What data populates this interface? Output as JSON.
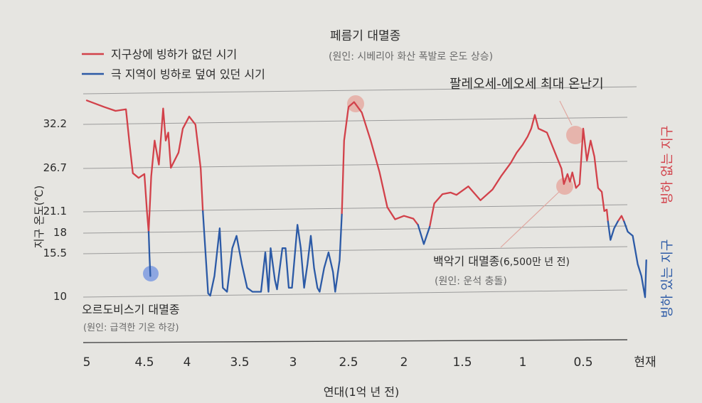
{
  "chart_data": {
    "type": "line",
    "title": "",
    "xlabel": "연대(1억 년 전)",
    "ylabel": "지구 온도(℃)",
    "x_ticks": [
      "5",
      "4.5",
      "4",
      "3.5",
      "3",
      "2.5",
      "2",
      "1.5",
      "1",
      "0.5",
      "현재"
    ],
    "y_ticks": [
      10,
      15.5,
      18,
      21.1,
      26.7,
      32.2
    ],
    "xlim": [
      5,
      0
    ],
    "ylim": [
      10,
      36
    ],
    "legend": [
      {
        "label": "지구상에 빙하가 없던 시기",
        "color": "#d2414a"
      },
      {
        "label": "극 지역이 빙하로 덮여 있던 시기",
        "color": "#2c5aa6"
      }
    ],
    "right_labels": {
      "ice_free": "빙하 없는 지구",
      "ice_house": "빙하 있는 지구"
    },
    "annotations": [
      {
        "title": "페름기 대멸종",
        "subtitle": "(원인: 시베리아 화산 폭발로 온도 상승)"
      },
      {
        "title": "팔레오세-에오세 최대 온난기",
        "subtitle": ""
      },
      {
        "title": "백악기 대멸종",
        "title_suffix": "(6,500만 년 전)",
        "subtitle": "(원인: 운석 충돌)"
      },
      {
        "title": "오르도비스기 대멸종",
        "subtitle": "(원인: 급격한 기온 하강)"
      }
    ],
    "series": [
      {
        "name": "지구상에 빙하가 없던 시기",
        "color": "#d2414a",
        "segments": [
          [
            [
              5.0,
              35.0
            ],
            [
              4.85,
              34.2
            ],
            [
              4.75,
              33.7
            ],
            [
              4.66,
              33.9
            ],
            [
              4.63,
              29.8
            ],
            [
              4.6,
              25.9
            ],
            [
              4.55,
              25.3
            ],
            [
              4.5,
              25.8
            ],
            [
              4.47,
              21.0
            ],
            [
              4.45,
              18.0
            ]
          ],
          [
            [
              4.45,
              18.0
            ],
            [
              4.42,
              25.5
            ],
            [
              4.38,
              30.0
            ],
            [
              4.33,
              27.0
            ],
            [
              4.28,
              34.0
            ],
            [
              4.25,
              30.0
            ],
            [
              4.22,
              31.0
            ],
            [
              4.19,
              26.6
            ],
            [
              4.1,
              28.5
            ],
            [
              4.05,
              31.5
            ],
            [
              3.98,
              33.0
            ],
            [
              3.92,
              32.0
            ],
            [
              3.87,
              26.5
            ],
            [
              3.85,
              21.0
            ]
          ],
          [
            [
              2.56,
              20.5
            ],
            [
              2.54,
              30.0
            ],
            [
              2.5,
              34.2
            ],
            [
              2.45,
              34.8
            ],
            [
              2.38,
              33.5
            ],
            [
              2.3,
              30.0
            ],
            [
              2.22,
              26.0
            ],
            [
              2.15,
              21.5
            ],
            [
              2.08,
              19.8
            ],
            [
              2.0,
              20.3
            ],
            [
              1.92,
              19.9
            ],
            [
              1.88,
              19.0
            ]
          ],
          [
            [
              1.78,
              18.7
            ],
            [
              1.74,
              22.0
            ],
            [
              1.67,
              23.2
            ],
            [
              1.6,
              23.4
            ],
            [
              1.55,
              23.1
            ],
            [
              1.45,
              24.2
            ],
            [
              1.4,
              23.3
            ],
            [
              1.35,
              22.4
            ],
            [
              1.25,
              23.8
            ],
            [
              1.18,
              25.5
            ],
            [
              1.1,
              27.2
            ],
            [
              1.05,
              28.5
            ],
            [
              1.0,
              29.5
            ],
            [
              0.96,
              30.5
            ],
            [
              0.93,
              31.5
            ],
            [
              0.9,
              33.2
            ],
            [
              0.87,
              31.5
            ],
            [
              0.8,
              31.0
            ],
            [
              0.72,
              28.0
            ],
            [
              0.68,
              26.5
            ],
            [
              0.66,
              24.5
            ],
            [
              0.63,
              25.8
            ],
            [
              0.61,
              24.8
            ],
            [
              0.59,
              26.0
            ],
            [
              0.56,
              24.0
            ],
            [
              0.53,
              24.5
            ],
            [
              0.5,
              31.5
            ],
            [
              0.47,
              27.5
            ],
            [
              0.44,
              30.0
            ],
            [
              0.41,
              28.0
            ],
            [
              0.38,
              24.0
            ],
            [
              0.35,
              23.5
            ],
            [
              0.33,
              21.0
            ],
            [
              0.31,
              21.2
            ],
            [
              0.3,
              19.5
            ]
          ],
          [
            [
              0.22,
              19.5
            ],
            [
              0.19,
              20.3
            ],
            [
              0.17,
              19.5
            ]
          ]
        ]
      },
      {
        "name": "극 지역이 빙하로 덮여 있던 시기",
        "color": "#2c5aa6",
        "segments": [
          [
            [
              4.45,
              18.0
            ],
            [
              4.44,
              15.0
            ],
            [
              4.43,
              12.5
            ]
          ],
          [
            [
              3.85,
              21.0
            ],
            [
              3.8,
              10.3
            ],
            [
              3.78,
              10.0
            ],
            [
              3.74,
              12.5
            ],
            [
              3.69,
              18.5
            ],
            [
              3.66,
              11.0
            ],
            [
              3.62,
              10.5
            ],
            [
              3.57,
              16.0
            ],
            [
              3.53,
              17.5
            ],
            [
              3.48,
              14.0
            ],
            [
              3.43,
              11.0
            ],
            [
              3.38,
              10.5
            ],
            [
              3.3,
              10.5
            ],
            [
              3.26,
              15.5
            ],
            [
              3.23,
              10.5
            ],
            [
              3.21,
              16.0
            ],
            [
              3.17,
              12.0
            ],
            [
              3.15,
              10.8
            ],
            [
              3.1,
              16.0
            ],
            [
              3.07,
              16.0
            ],
            [
              3.04,
              11.0
            ],
            [
              3.01,
              11.0
            ],
            [
              2.96,
              19.0
            ],
            [
              2.93,
              16.0
            ],
            [
              2.9,
              11.0
            ],
            [
              2.87,
              14.0
            ],
            [
              2.84,
              17.5
            ],
            [
              2.81,
              13.5
            ],
            [
              2.78,
              11.0
            ],
            [
              2.76,
              10.5
            ],
            [
              2.72,
              13.5
            ],
            [
              2.68,
              15.5
            ],
            [
              2.64,
              13.0
            ],
            [
              2.62,
              10.5
            ],
            [
              2.58,
              14.5
            ],
            [
              2.56,
              20.5
            ]
          ],
          [
            [
              1.88,
              19.0
            ],
            [
              1.83,
              16.5
            ],
            [
              1.78,
              18.7
            ]
          ],
          [
            [
              0.3,
              19.5
            ],
            [
              0.28,
              17.0
            ],
            [
              0.25,
              18.5
            ],
            [
              0.22,
              19.5
            ]
          ],
          [
            [
              0.17,
              19.5
            ],
            [
              0.14,
              18.0
            ],
            [
              0.1,
              17.5
            ],
            [
              0.06,
              14.0
            ],
            [
              0.03,
              12.5
            ],
            [
              0.0,
              9.8
            ],
            [
              -0.01,
              14.5
            ]
          ]
        ]
      }
    ]
  }
}
